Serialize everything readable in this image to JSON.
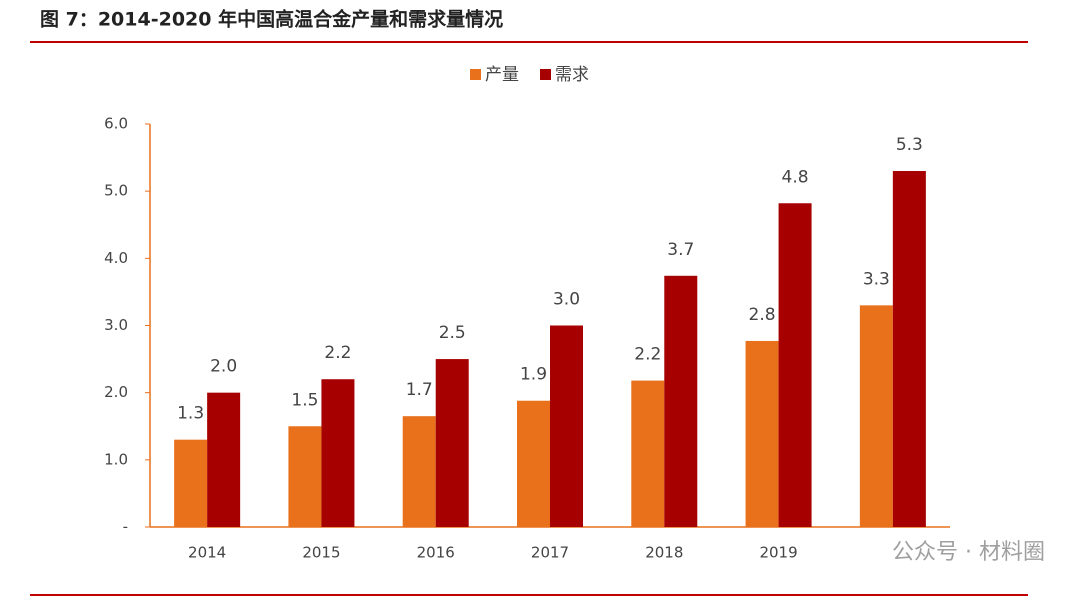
{
  "chart_data": {
    "type": "bar",
    "title": "图 7：2014-2020 年中国高温合金产量和需求量情况",
    "categories": [
      "2014",
      "2015",
      "2016",
      "2017",
      "2018",
      "2019",
      null
    ],
    "series": [
      {
        "name": "产量",
        "color": "#e9711c",
        "values": [
          1.3,
          1.5,
          1.65,
          1.88,
          2.18,
          2.77,
          3.3
        ],
        "value_labels": [
          "1.3",
          "1.5",
          "1.7",
          "1.9",
          "2.2",
          "2.8",
          "3.3"
        ]
      },
      {
        "name": "需求",
        "color": "#a60000",
        "values": [
          2.0,
          2.2,
          2.5,
          3.0,
          3.74,
          4.82,
          5.3
        ],
        "value_labels": [
          "2.0",
          "2.2",
          "2.5",
          "3.0",
          "3.7",
          "4.8",
          "5.3"
        ]
      }
    ],
    "ylim": [
      0,
      6
    ],
    "yticks": [
      {
        "value": 0,
        "label": "-"
      },
      {
        "value": 1,
        "label": "1.0"
      },
      {
        "value": 2,
        "label": "2.0"
      },
      {
        "value": 3,
        "label": "3.0"
      },
      {
        "value": 4,
        "label": "4.0"
      },
      {
        "value": 5,
        "label": "5.0"
      },
      {
        "value": 6,
        "label": "6.0"
      }
    ],
    "legend": "top",
    "watermark": "公众号 · 材料圈"
  }
}
